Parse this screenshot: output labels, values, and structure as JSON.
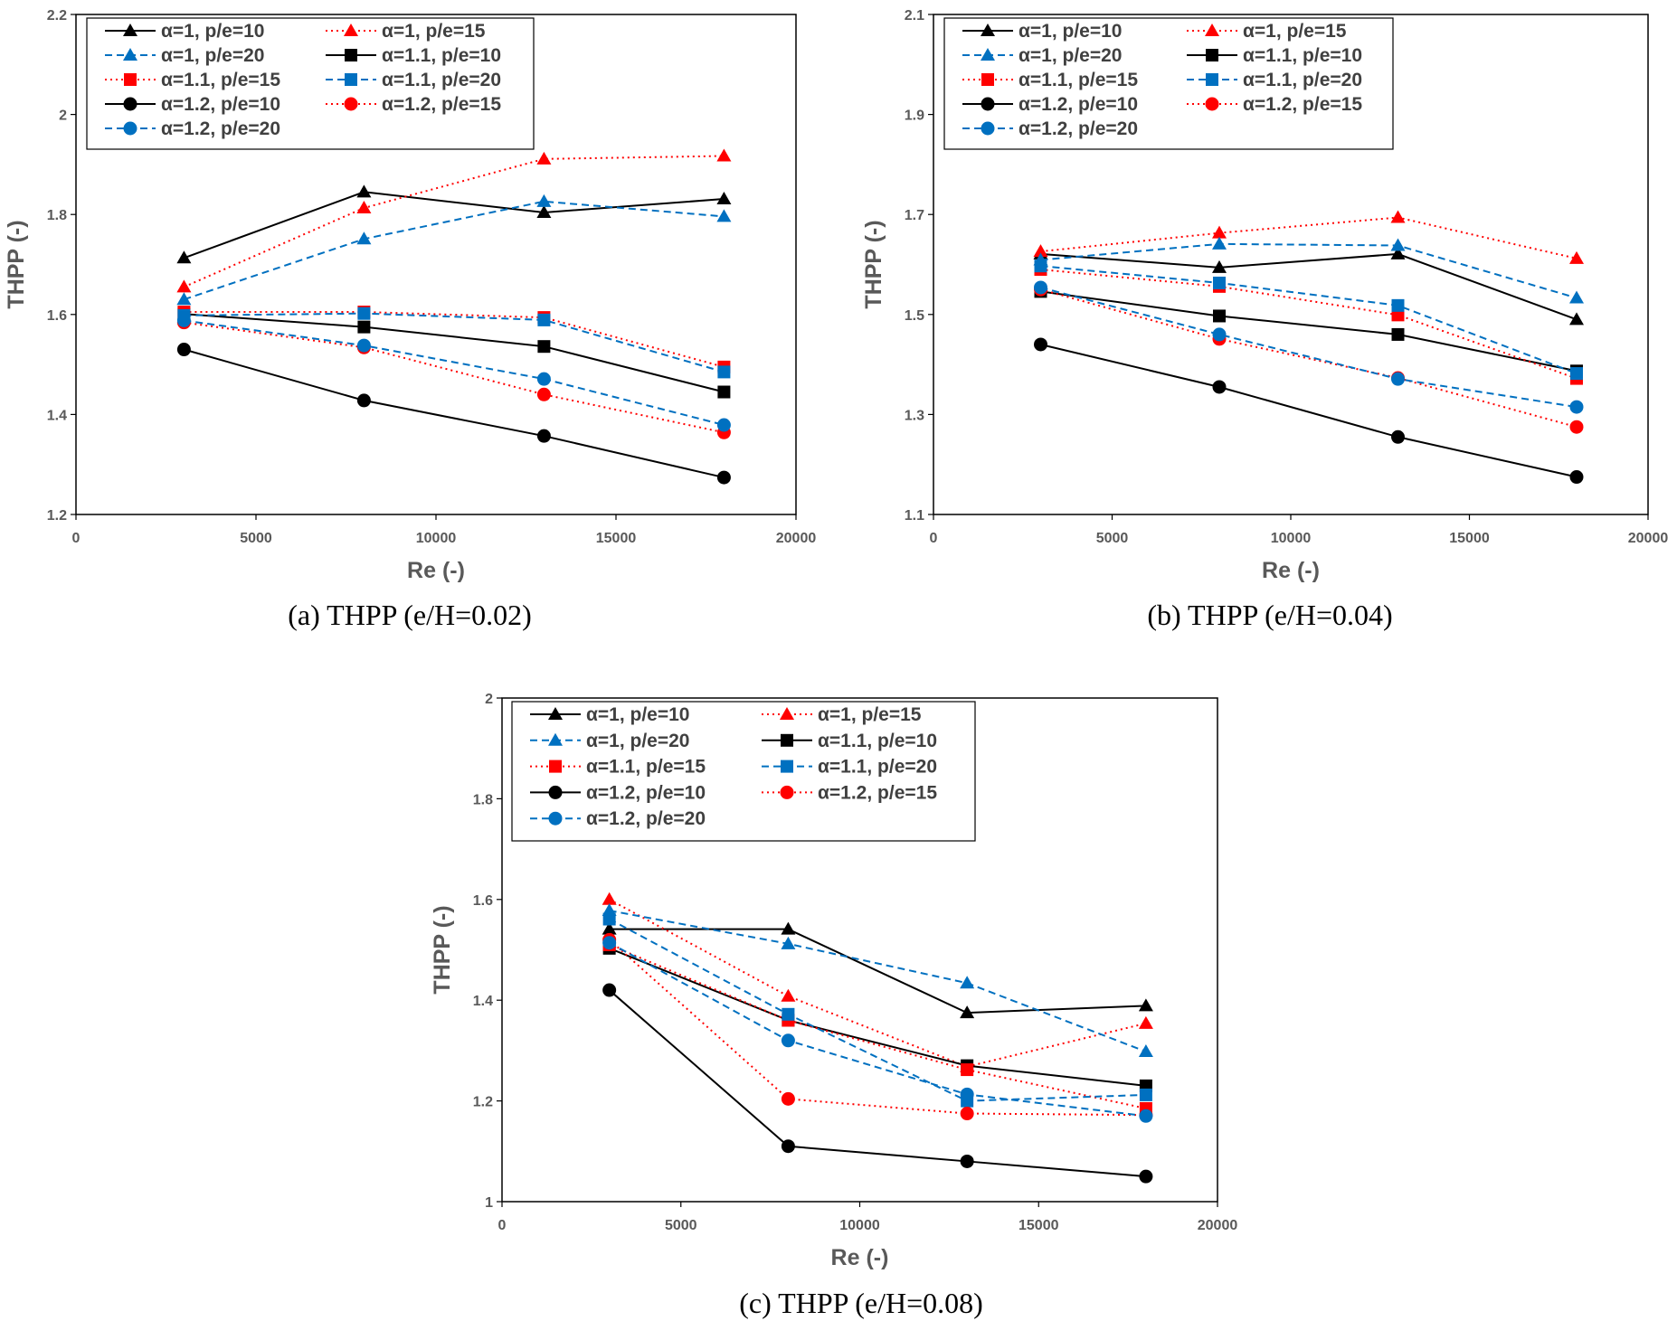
{
  "styles": {
    "a1_p10": {
      "color": "#000000",
      "marker": "triangle",
      "dash": "solid"
    },
    "a1_p15": {
      "color": "#ff0000",
      "marker": "triangle",
      "dash": "dot"
    },
    "a1_p20": {
      "color": "#0070c0",
      "marker": "triangle",
      "dash": "dash"
    },
    "a11_p10": {
      "color": "#000000",
      "marker": "square",
      "dash": "solid"
    },
    "a11_p15": {
      "color": "#ff0000",
      "marker": "square",
      "dash": "dot"
    },
    "a11_p20": {
      "color": "#0070c0",
      "marker": "square",
      "dash": "dash"
    },
    "a12_p10": {
      "color": "#000000",
      "marker": "circle",
      "dash": "solid"
    },
    "a12_p15": {
      "color": "#ff0000",
      "marker": "circle",
      "dash": "dot"
    },
    "a12_p20": {
      "color": "#0070c0",
      "marker": "circle",
      "dash": "dash"
    }
  },
  "chart_data": [
    {
      "type": "line",
      "caption": "(a) THPP (e/H=0.02)",
      "xlabel": "Re (-)",
      "ylabel": "THPP (-)",
      "xlim": [
        0,
        20000
      ],
      "ylim": [
        1.2,
        2.2
      ],
      "xticks": [
        0,
        5000,
        10000,
        15000,
        20000
      ],
      "yticks": [
        1.2,
        1.4,
        1.6,
        1.8,
        2,
        2.2
      ],
      "x": [
        3000,
        8000,
        13000,
        18000
      ],
      "series": [
        {
          "name": "α=1, p/e=10",
          "style": "a1_p10",
          "values": [
            1.713,
            1.845,
            1.804,
            1.831
          ]
        },
        {
          "name": "α=1, p/e=15",
          "style": "a1_p15",
          "values": [
            1.655,
            1.813,
            1.911,
            1.917
          ]
        },
        {
          "name": "α=1, p/e=20",
          "style": "a1_p20",
          "values": [
            1.63,
            1.751,
            1.826,
            1.796
          ]
        },
        {
          "name": "α=1.1, p/e=10",
          "style": "a11_p10",
          "values": [
            1.601,
            1.575,
            1.536,
            1.445
          ]
        },
        {
          "name": "α=1.1, p/e=15",
          "style": "a11_p15",
          "values": [
            1.605,
            1.605,
            1.594,
            1.495
          ]
        },
        {
          "name": "α=1.1, p/e=20",
          "style": "a11_p20",
          "values": [
            1.598,
            1.602,
            1.589,
            1.485
          ]
        },
        {
          "name": "α=1.2, p/e=10",
          "style": "a12_p10",
          "values": [
            1.53,
            1.428,
            1.357,
            1.274
          ]
        },
        {
          "name": "α=1.2, p/e=15",
          "style": "a12_p15",
          "values": [
            1.584,
            1.534,
            1.44,
            1.364
          ]
        },
        {
          "name": "α=1.2, p/e=20",
          "style": "a12_p20",
          "values": [
            1.588,
            1.538,
            1.471,
            1.379
          ]
        }
      ]
    },
    {
      "type": "line",
      "caption": "(b) THPP (e/H=0.04)",
      "xlabel": "Re (-)",
      "ylabel": "THPP (-)",
      "xlim": [
        0,
        20000
      ],
      "ylim": [
        1.1,
        2.1
      ],
      "xticks": [
        0,
        5000,
        10000,
        15000,
        20000
      ],
      "yticks": [
        1.1,
        1.3,
        1.5,
        1.7,
        1.9,
        2.1
      ],
      "x": [
        3000,
        8000,
        13000,
        18000
      ],
      "series": [
        {
          "name": "α=1, p/e=10",
          "style": "a1_p10",
          "values": [
            1.621,
            1.594,
            1.621,
            1.49
          ]
        },
        {
          "name": "α=1, p/e=15",
          "style": "a1_p15",
          "values": [
            1.626,
            1.663,
            1.694,
            1.612
          ]
        },
        {
          "name": "α=1, p/e=20",
          "style": "a1_p20",
          "values": [
            1.609,
            1.641,
            1.638,
            1.533
          ]
        },
        {
          "name": "α=1.1, p/e=10",
          "style": "a11_p10",
          "values": [
            1.546,
            1.497,
            1.46,
            1.387
          ]
        },
        {
          "name": "α=1.1, p/e=15",
          "style": "a11_p15",
          "values": [
            1.59,
            1.556,
            1.499,
            1.372
          ]
        },
        {
          "name": "α=1.1, p/e=20",
          "style": "a11_p20",
          "values": [
            1.597,
            1.563,
            1.518,
            1.382
          ]
        },
        {
          "name": "α=1.2, p/e=10",
          "style": "a12_p10",
          "values": [
            1.44,
            1.355,
            1.255,
            1.175
          ]
        },
        {
          "name": "α=1.2, p/e=15",
          "style": "a12_p15",
          "values": [
            1.55,
            1.451,
            1.373,
            1.275
          ]
        },
        {
          "name": "α=1.2, p/e=20",
          "style": "a12_p20",
          "values": [
            1.554,
            1.46,
            1.371,
            1.315
          ]
        }
      ]
    },
    {
      "type": "line",
      "caption": "(c) THPP (e/H=0.08)",
      "xlabel": "Re (-)",
      "ylabel": "THPP (-)",
      "xlim": [
        0,
        20000
      ],
      "ylim": [
        1,
        2
      ],
      "xticks": [
        0,
        5000,
        10000,
        15000,
        20000
      ],
      "yticks": [
        1,
        1.2,
        1.4,
        1.6,
        1.8,
        2
      ],
      "x": [
        3000,
        8000,
        13000,
        18000
      ],
      "series": [
        {
          "name": "α=1, p/e=10",
          "style": "a1_p10",
          "values": [
            1.541,
            1.541,
            1.375,
            1.389
          ]
        },
        {
          "name": "α=1, p/e=15",
          "style": "a1_p15",
          "values": [
            1.6,
            1.408,
            1.268,
            1.354
          ]
        },
        {
          "name": "α=1, p/e=20",
          "style": "a1_p20",
          "values": [
            1.578,
            1.512,
            1.434,
            1.298
          ]
        },
        {
          "name": "α=1.1, p/e=10",
          "style": "a11_p10",
          "values": [
            1.503,
            1.36,
            1.27,
            1.23
          ]
        },
        {
          "name": "α=1.1, p/e=15",
          "style": "a11_p15",
          "values": [
            1.51,
            1.36,
            1.262,
            1.185
          ]
        },
        {
          "name": "α=1.1, p/e=20",
          "style": "a11_p20",
          "values": [
            1.561,
            1.372,
            1.2,
            1.212
          ]
        },
        {
          "name": "α=1.2, p/e=10",
          "style": "a12_p10",
          "values": [
            1.42,
            1.11,
            1.08,
            1.05
          ]
        },
        {
          "name": "α=1.2, p/e=15",
          "style": "a12_p15",
          "values": [
            1.52,
            1.204,
            1.175,
            1.172
          ]
        },
        {
          "name": "α=1.2, p/e=20",
          "style": "a12_p20",
          "values": [
            1.514,
            1.32,
            1.213,
            1.17
          ]
        }
      ]
    }
  ]
}
